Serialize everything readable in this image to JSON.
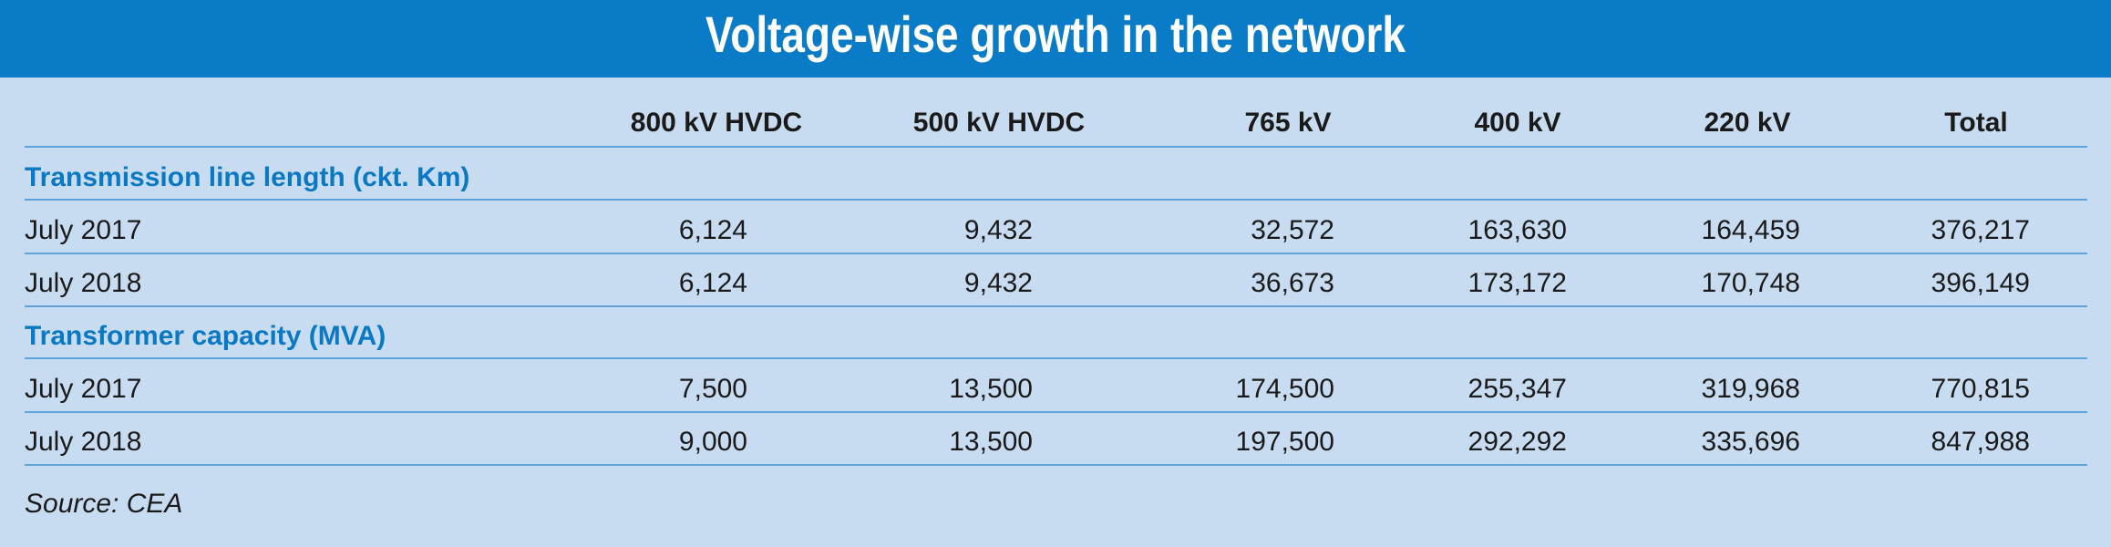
{
  "title": "Voltage-wise growth in the network",
  "columns": [
    "800 kV HVDC",
    "500 kV HVDC",
    "765 kV",
    "400 kV",
    "220 kV",
    "Total"
  ],
  "sections": [
    {
      "title": "Transmission line length (ckt. Km)",
      "rows": [
        {
          "label": "July 2017",
          "values": [
            "6,124",
            "9,432",
            "32,572",
            "163,630",
            "164,459",
            "376,217"
          ]
        },
        {
          "label": "July 2018",
          "values": [
            "6,124",
            "9,432",
            "36,673",
            "173,172",
            "170,748",
            "396,149"
          ]
        }
      ]
    },
    {
      "title": "Transformer capacity (MVA)",
      "rows": [
        {
          "label": "July 2017",
          "values": [
            "7,500",
            "13,500",
            "174,500",
            "255,347",
            "319,968",
            "770,815"
          ]
        },
        {
          "label": "July 2018",
          "values": [
            "9,000",
            "13,500",
            "197,500",
            "292,292",
            "335,696",
            "847,988"
          ]
        }
      ]
    }
  ],
  "source": "Source: CEA"
}
